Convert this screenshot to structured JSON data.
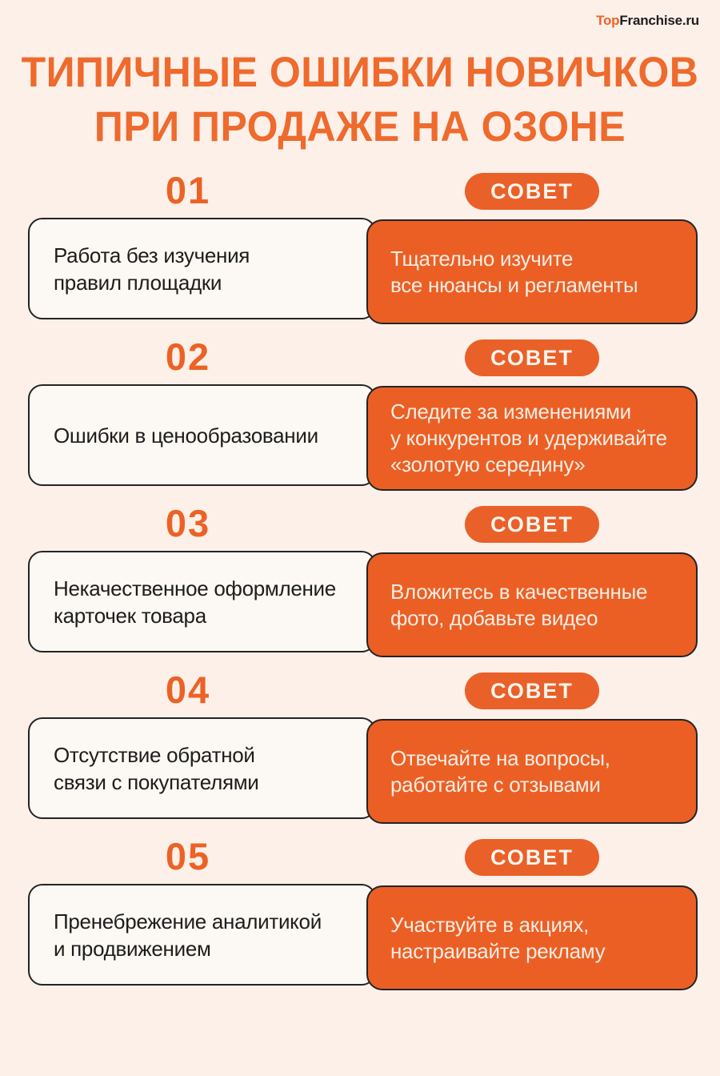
{
  "page": {
    "background": "#fdf0e9",
    "accent": "#eb6126"
  },
  "logo": {
    "prefix": "Top",
    "suffix": "Franchise.ru"
  },
  "title": {
    "line1": "ТИПИЧНЫЕ ОШИБКИ НОВИЧКОВ",
    "line2": "ПРИ ПРОДАЖЕ НА ОЗОНЕ"
  },
  "items": [
    {
      "number": "01",
      "badge": "СОВЕТ",
      "mistake": "Работа без изучения\nправил площадки",
      "advice": "Тщательно изучите\nвсе нюансы и регламенты"
    },
    {
      "number": "02",
      "badge": "СОВЕТ",
      "mistake": "Ошибки в ценообразовании",
      "advice": "Следите за изменениями\nу конкурентов и удерживайте\n«золотую середину»"
    },
    {
      "number": "03",
      "badge": "СОВЕТ",
      "mistake": "Некачественное оформление\nкарточек товара",
      "advice": "Вложитесь в качественные\nфото, добавьте видео"
    },
    {
      "number": "04",
      "badge": "СОВЕТ",
      "mistake": "Отсутствие обратной\nсвязи с покупателями",
      "advice": "Отвечайте на вопросы,\nработайте с отзывами"
    },
    {
      "number": "05",
      "badge": "СОВЕТ",
      "mistake": "Пренебрежение аналитикой\nи продвижением",
      "advice": "Участвуйте в акциях,\nнастраивайте рекламу"
    }
  ]
}
